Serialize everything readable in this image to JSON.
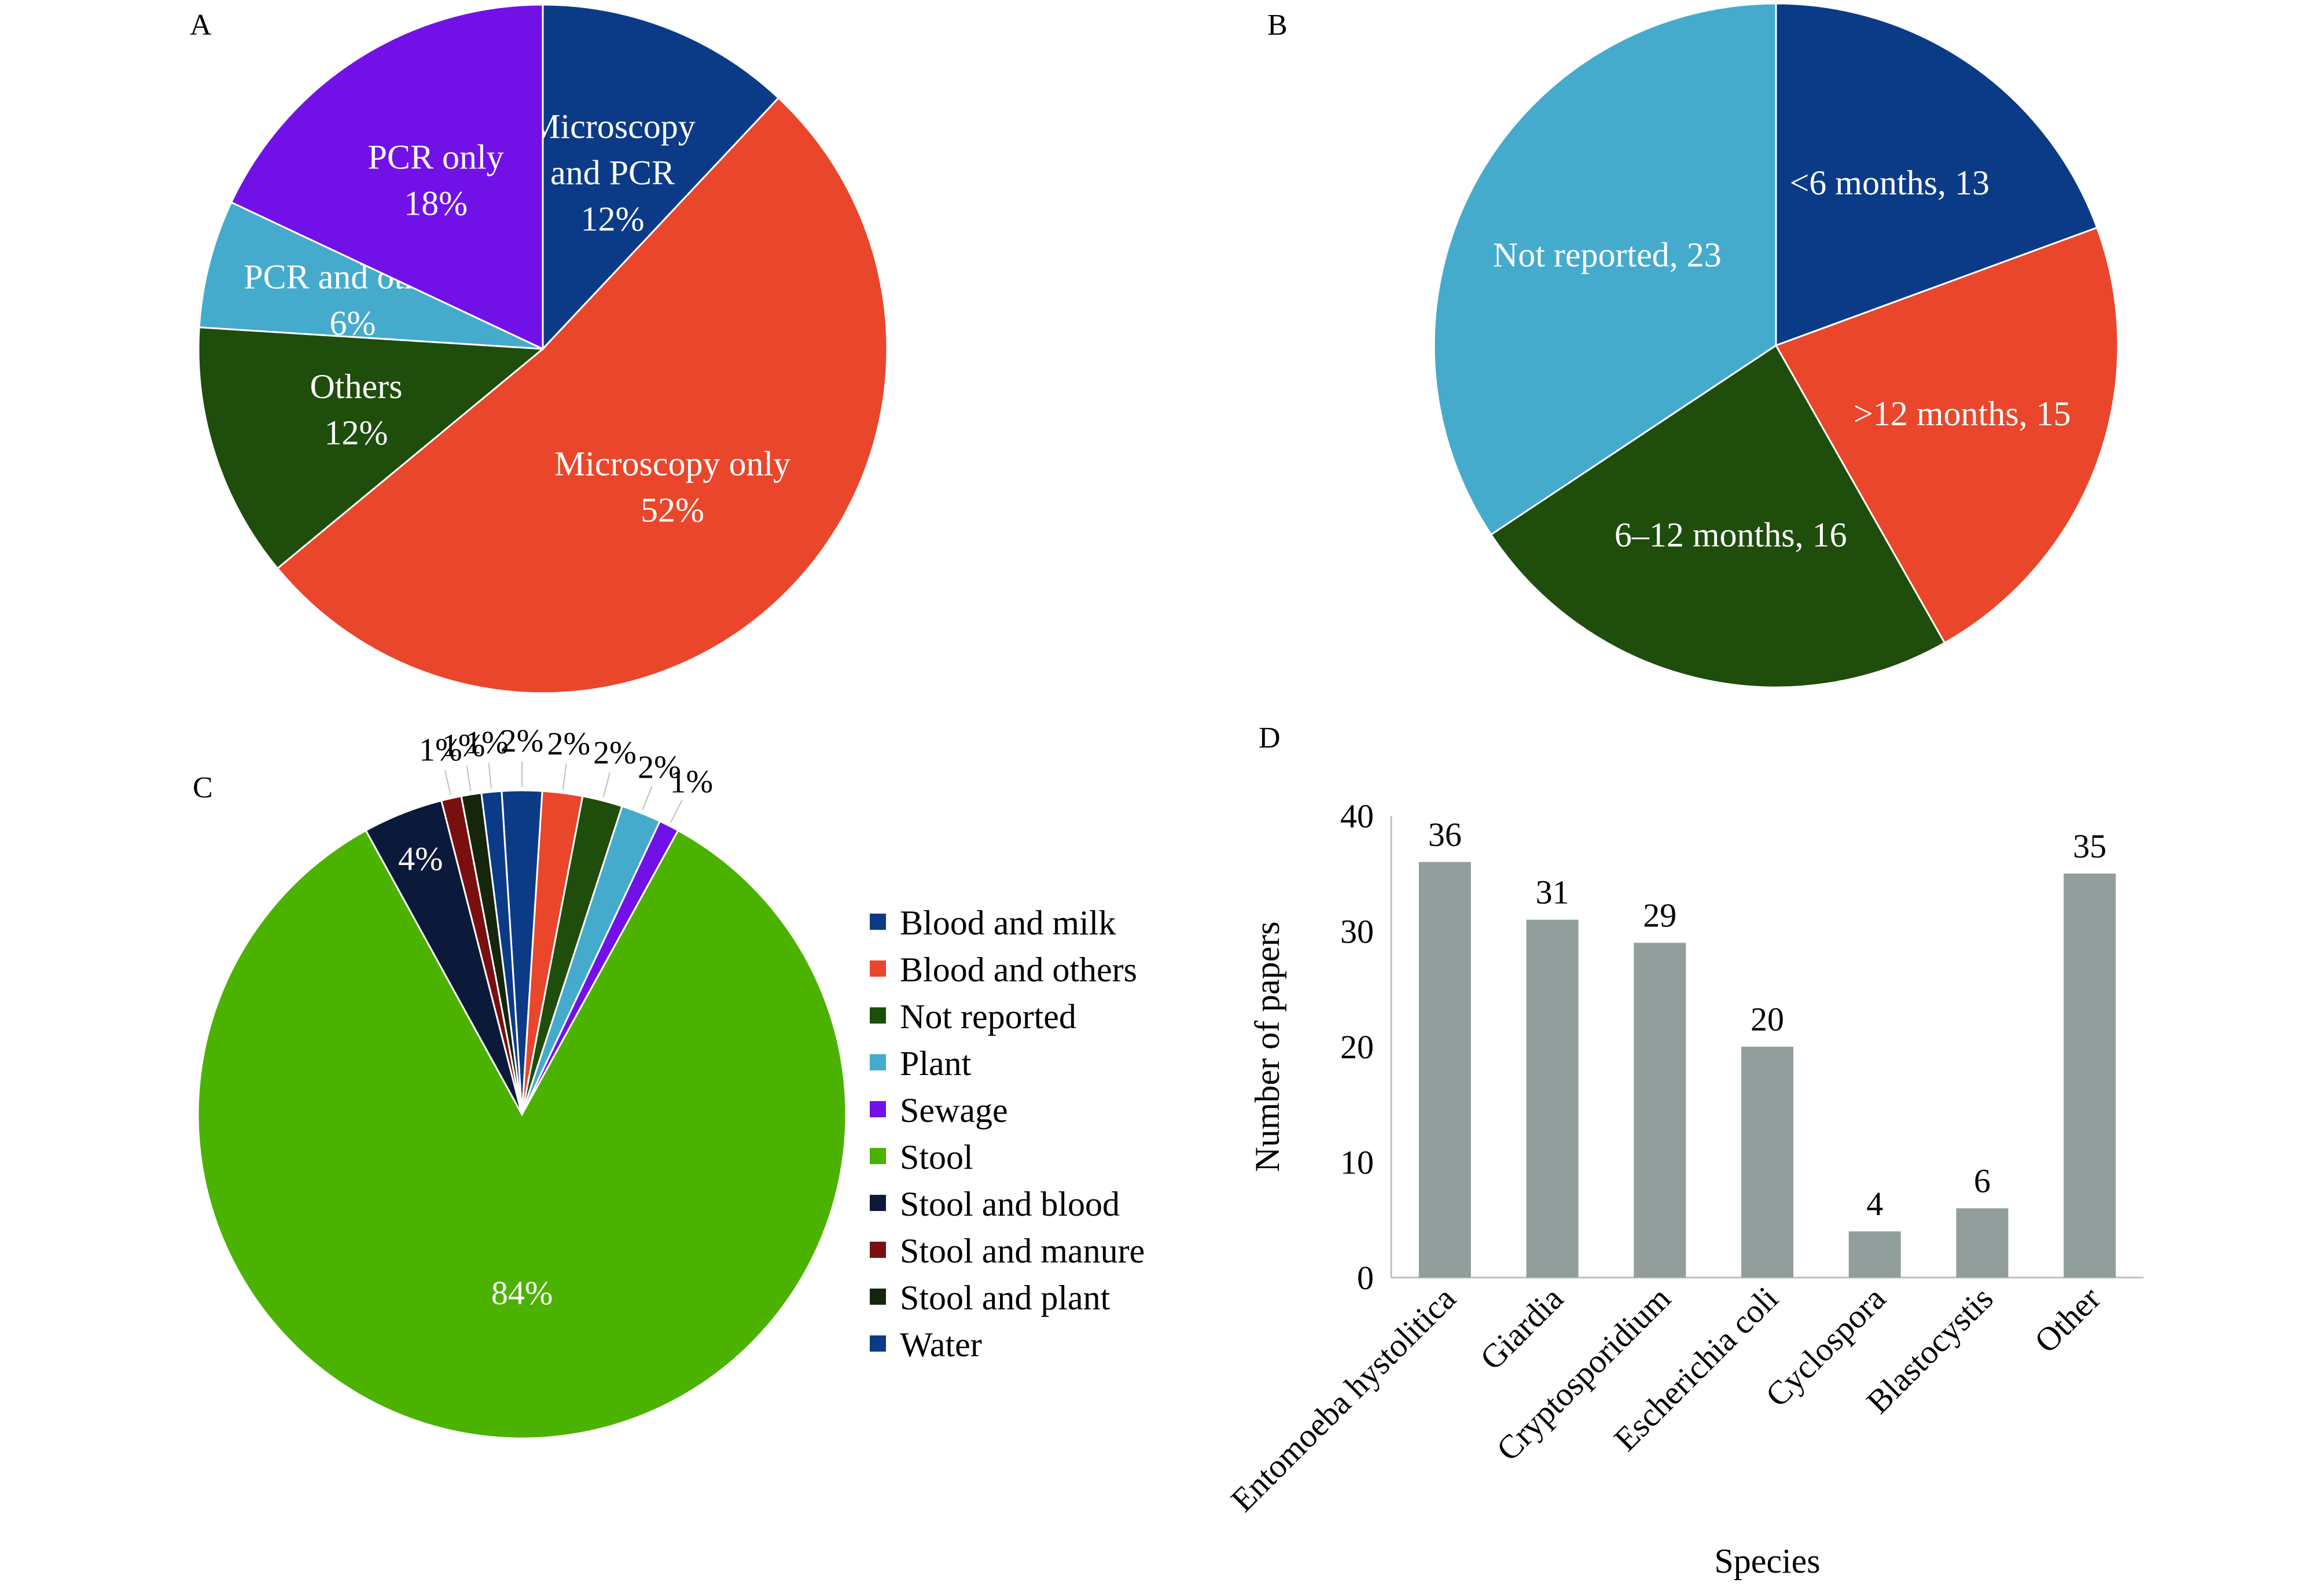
{
  "chart_data": [
    {
      "panel": "A",
      "type": "pie",
      "slices": [
        {
          "name": "Microscopy and PCR",
          "value": 12,
          "label_lines": [
            "Microscopy",
            "and PCR",
            "12%"
          ],
          "color": "#0b3b87"
        },
        {
          "name": "Microscopy only",
          "value": 52,
          "label_lines": [
            "Microscopy only",
            "52%"
          ],
          "color": "#ea462b"
        },
        {
          "name": "Others",
          "value": 12,
          "label_lines": [
            "Others",
            "12%"
          ],
          "color": "#1e4d0c"
        },
        {
          "name": "PCR and others",
          "value": 6,
          "label_lines": [
            "PCR and others",
            "6%"
          ],
          "color": "#45abcd"
        },
        {
          "name": "PCR only",
          "value": 18,
          "label_lines": [
            "PCR only",
            "18%"
          ],
          "color": "#7111e8"
        }
      ]
    },
    {
      "panel": "B",
      "type": "pie",
      "slices": [
        {
          "name": "<6 months",
          "value": 13,
          "label_lines": [
            "<6 months, 13"
          ],
          "color": "#0b3b87"
        },
        {
          "name": ">12 months",
          "value": 15,
          "label_lines": [
            ">12 months, 15"
          ],
          "color": "#ea462b"
        },
        {
          "name": "6–12 months",
          "value": 16,
          "label_lines": [
            "6–12 months, 16"
          ],
          "color": "#1e4d0c"
        },
        {
          "name": "Not reported",
          "value": 23,
          "label_lines": [
            "Not reported, 23"
          ],
          "color": "#45abcd"
        }
      ]
    },
    {
      "panel": "C",
      "type": "pie",
      "slices": [
        {
          "name": "Blood and milk",
          "value": 2,
          "label": "2%",
          "color": "#0b3b87"
        },
        {
          "name": "Blood and others",
          "value": 2,
          "label": "2%",
          "color": "#ea462b"
        },
        {
          "name": "Not reported",
          "value": 2,
          "label": "2%",
          "color": "#1e4d0c"
        },
        {
          "name": "Plant",
          "value": 2,
          "label": "2%",
          "color": "#45abcd"
        },
        {
          "name": "Sewage",
          "value": 1,
          "label": "1%",
          "color": "#7111e8"
        },
        {
          "name": "Stool",
          "value": 84,
          "label": "84%",
          "color": "#4cb200"
        },
        {
          "name": "Stool and blood",
          "value": 4,
          "label": "4%",
          "color": "#0b1a3a"
        },
        {
          "name": "Stool and manure",
          "value": 1,
          "label": "1%",
          "color": "#7a0f0f"
        },
        {
          "name": "Stool and plant",
          "value": 1,
          "label": "1%",
          "color": "#15260d"
        },
        {
          "name": "Water",
          "value": 1,
          "label": "1%",
          "color": "#0b3b87"
        }
      ],
      "legend": [
        "Blood and milk",
        "Blood and others",
        "Not reported",
        "Plant",
        "Sewage",
        "Stool",
        "Stool and blood",
        "Stool and manure",
        "Stool and plant",
        "Water"
      ],
      "legend_position": "right"
    },
    {
      "panel": "D",
      "type": "bar",
      "categories": [
        "Entomoeba hystolitica",
        "Giardia",
        "Cryptosporidium",
        "Escherichia coli",
        "Cyclospora",
        "Blastocystis",
        "Other"
      ],
      "values": [
        36,
        31,
        29,
        20,
        4,
        6,
        35
      ],
      "data_labels": [
        "36",
        "31",
        "29",
        "20",
        "4",
        "6",
        "35"
      ],
      "xlabel": "Species",
      "ylabel": "Number of papers",
      "ylim": [
        0,
        40
      ],
      "yticks": [
        "0",
        "10",
        "20",
        "30",
        "40"
      ],
      "bar_color": "#919e9c",
      "grid": false
    }
  ],
  "panel_labels": {
    "a": "A",
    "b": "B",
    "c": "C",
    "d": "D"
  }
}
